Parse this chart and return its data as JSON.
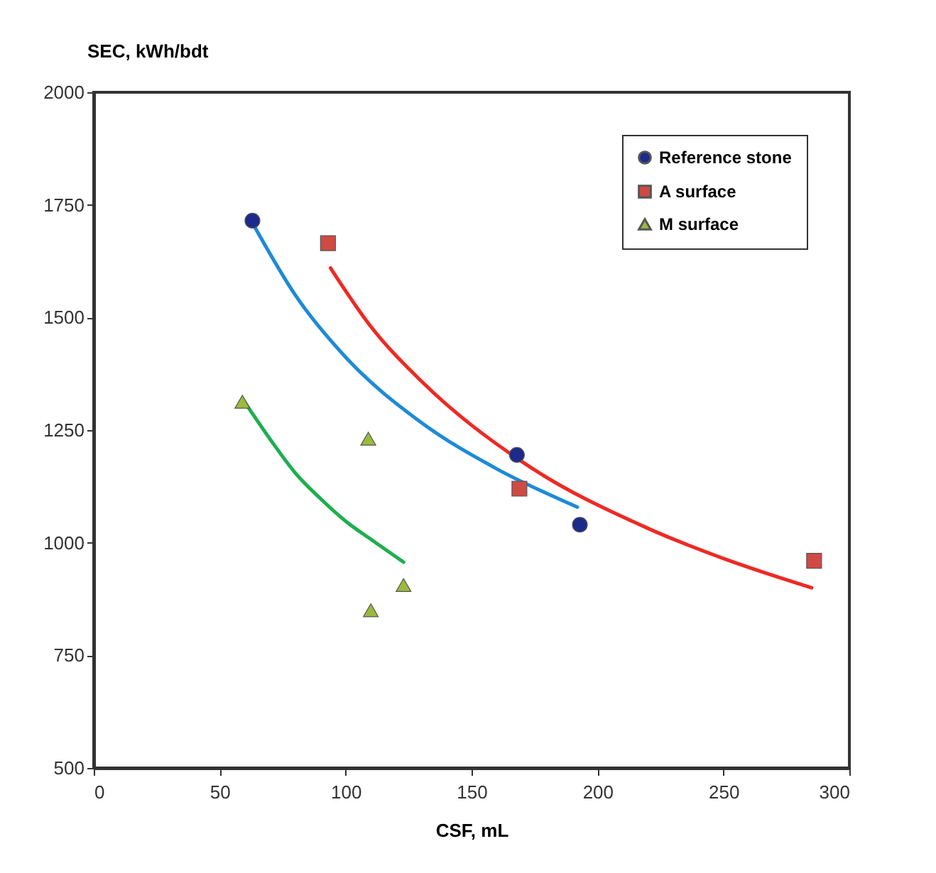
{
  "chart_data": {
    "type": "scatter",
    "xlabel": "CSF, mL",
    "ylabel": "SEC, kWh/bdt",
    "xlim": [
      0,
      300
    ],
    "xticks": [
      0,
      50,
      100,
      150,
      200,
      250,
      300
    ],
    "ylim": [
      500,
      2000
    ],
    "yticks": [
      500,
      750,
      1000,
      1250,
      1500,
      1750,
      2000
    ],
    "grid": false,
    "legend": "top right",
    "series": [
      {
        "name": "Reference stone",
        "marker": "circle",
        "color": "#1c2a8c",
        "x": [
          63,
          168,
          193
        ],
        "values": [
          1715,
          1195,
          1040
        ]
      },
      {
        "name": "A surface",
        "marker": "square",
        "color": "#d04a44",
        "x": [
          93,
          169,
          286
        ],
        "values": [
          1665,
          1120,
          960
        ]
      },
      {
        "name": "M surface",
        "marker": "triangle",
        "color": "#9bbb3c",
        "x": [
          59,
          109,
          110,
          123
        ],
        "values": [
          1313,
          1231,
          850,
          906
        ]
      },
      {
        "type": "line",
        "color": "#1e8ad6",
        "x": [
          63,
          80,
          100,
          130,
          160,
          192
        ],
        "values": [
          1710,
          1550,
          1412,
          1267,
          1164,
          1079
        ]
      },
      {
        "type": "line",
        "color": "#ee2a24",
        "x": [
          94,
          110,
          130,
          170,
          220,
          250,
          285
        ],
        "values": [
          1610,
          1480,
          1359,
          1180,
          1032,
          965,
          900
        ]
      },
      {
        "type": "line",
        "color": "#1fae4e",
        "x": [
          59,
          70,
          80,
          90,
          100,
          112,
          123
        ],
        "values": [
          1320,
          1230,
          1155,
          1098,
          1048,
          1000,
          957
        ]
      }
    ]
  }
}
